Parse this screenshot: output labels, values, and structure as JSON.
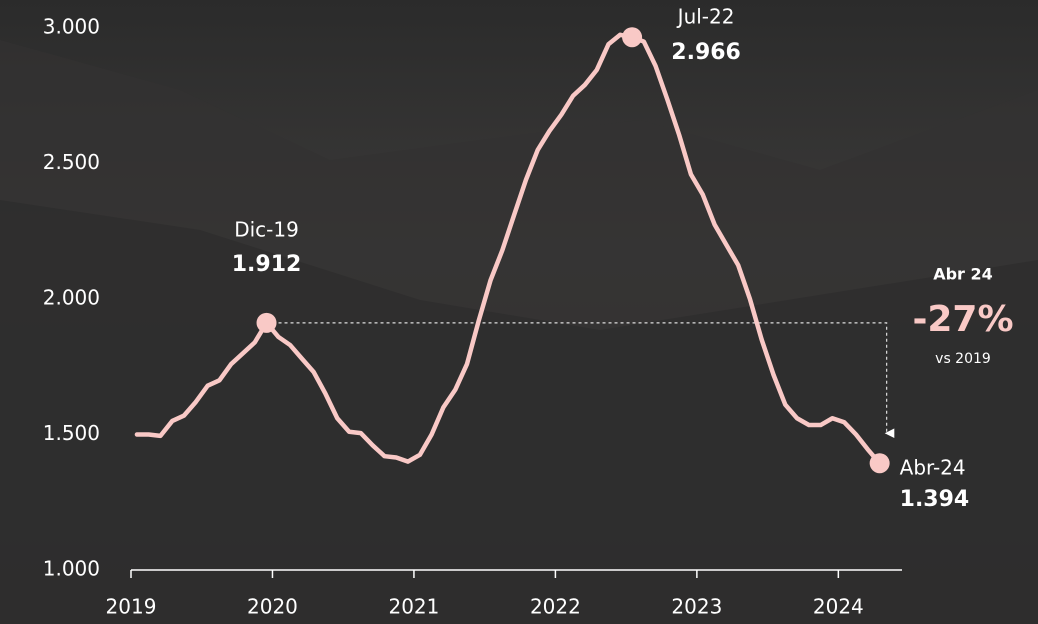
{
  "chart_data": {
    "type": "line",
    "x": [
      2019.042,
      2019.125,
      2019.208,
      2019.292,
      2019.375,
      2019.458,
      2019.542,
      2019.625,
      2019.708,
      2019.792,
      2019.875,
      2019.958,
      2020.042,
      2020.125,
      2020.208,
      2020.292,
      2020.375,
      2020.458,
      2020.542,
      2020.625,
      2020.708,
      2020.792,
      2020.875,
      2020.958,
      2021.042,
      2021.125,
      2021.208,
      2021.292,
      2021.375,
      2021.458,
      2021.542,
      2021.625,
      2021.708,
      2021.792,
      2021.875,
      2021.958,
      2022.042,
      2022.125,
      2022.208,
      2022.292,
      2022.375,
      2022.458,
      2022.542,
      2022.625,
      2022.708,
      2022.792,
      2022.875,
      2022.958,
      2023.042,
      2023.125,
      2023.208,
      2023.292,
      2023.375,
      2023.458,
      2023.542,
      2023.625,
      2023.708,
      2023.792,
      2023.875,
      2023.958,
      2024.042,
      2024.125,
      2024.208,
      2024.292
    ],
    "series": [
      {
        "color": "#f9c9c6",
        "values": [
          1500,
          1500,
          1495,
          1550,
          1570,
          1620,
          1680,
          1700,
          1760,
          1800,
          1840,
          1912,
          1860,
          1830,
          1780,
          1730,
          1650,
          1560,
          1510,
          1505,
          1460,
          1420,
          1415,
          1400,
          1425,
          1500,
          1600,
          1665,
          1760,
          1920,
          2070,
          2180,
          2310,
          2440,
          2550,
          2620,
          2680,
          2750,
          2790,
          2845,
          2940,
          2975,
          2966,
          2950,
          2860,
          2735,
          2605,
          2460,
          2385,
          2275,
          2200,
          2125,
          2000,
          1850,
          1720,
          1610,
          1560,
          1535,
          1535,
          1560,
          1545,
          1500,
          1445,
          1394
        ]
      }
    ],
    "xlim": [
      2019,
      2024.45
    ],
    "xticks": [
      2019,
      2020,
      2021,
      2022,
      2023,
      2024
    ],
    "ylim": [
      1000,
      3000
    ],
    "yticks": [
      {
        "value": 1000,
        "label": "1.000"
      },
      {
        "value": 1500,
        "label": "1.500"
      },
      {
        "value": 2000,
        "label": "2.000"
      },
      {
        "value": 2500,
        "label": "2.500"
      },
      {
        "value": 3000,
        "label": "3.000"
      }
    ],
    "annotations": [
      {
        "text": "Dic-19",
        "x": 2019.958,
        "y": 1912,
        "value_label": "1.912"
      },
      {
        "text": "Jul-22",
        "x": 2022.542,
        "y": 2966,
        "value_label": "2.966"
      },
      {
        "text": "Abr-24",
        "x": 2024.292,
        "y": 1394,
        "value_label": "1.394"
      }
    ],
    "callout": {
      "title": "Abr 24",
      "value": -27,
      "value_label": "-27%",
      "subtitle": "vs 2019"
    }
  }
}
